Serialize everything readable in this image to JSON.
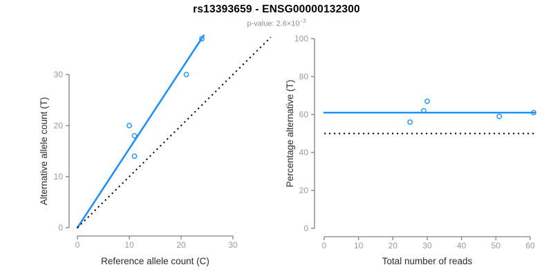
{
  "header": {
    "title": "rs13393659 - ENSG00000132300",
    "subtitle_prefix": "p-value: 2.6×10",
    "subtitle_exponent": "−3"
  },
  "colors": {
    "accent_blue": "#1e90ff",
    "axis_gray": "#808080",
    "tick_label_gray": "#999999",
    "axis_title_dark": "#2b2b2b",
    "dotted_black": "#000000",
    "background": "#ffffff"
  },
  "chart_data": [
    {
      "type": "scatter",
      "name": "allele-counts",
      "xlabel": "Reference allele count (C)",
      "ylabel": "Alternative allele count (T)",
      "xticks": [
        0,
        10,
        20,
        30
      ],
      "yticks": [
        0,
        10,
        20,
        30
      ],
      "xlim": [
        0,
        37.5
      ],
      "ylim": [
        0,
        38
      ],
      "grid": false,
      "points": [
        [
          10,
          20
        ],
        [
          11,
          18
        ],
        [
          11,
          14
        ],
        [
          21,
          30
        ],
        [
          24,
          37
        ]
      ],
      "lines": [
        {
          "name": "regression-line",
          "x1": 0,
          "y1": 0,
          "x2": 24.35,
          "y2": 37.65,
          "style": "solid",
          "color": "accent"
        },
        {
          "name": "identity-line",
          "x1": 0,
          "y1": 0,
          "x2": 37.3,
          "y2": 37.3,
          "style": "dotted",
          "color": "black"
        }
      ]
    },
    {
      "type": "scatter",
      "name": "percentage-alternative",
      "xlabel": "Total number of reads",
      "ylabel": "Percentage alternative (T)",
      "xticks": [
        0,
        10,
        20,
        30,
        40,
        50,
        60
      ],
      "yticks": [
        0,
        20,
        40,
        60,
        80,
        100
      ],
      "xlim": [
        0,
        62
      ],
      "ylim": [
        0,
        100
      ],
      "grid": false,
      "points": [
        [
          25,
          56
        ],
        [
          29,
          62
        ],
        [
          30,
          67
        ],
        [
          51,
          59
        ],
        [
          61,
          61
        ]
      ],
      "lines": [
        {
          "name": "mean-percentage-line",
          "x1": 0,
          "y1": 61,
          "x2": 61.4,
          "y2": 61,
          "style": "solid",
          "color": "accent"
        },
        {
          "name": "null-percentage-line",
          "x1": 0,
          "y1": 50,
          "x2": 61.4,
          "y2": 50,
          "style": "dotted",
          "color": "black"
        }
      ]
    }
  ]
}
